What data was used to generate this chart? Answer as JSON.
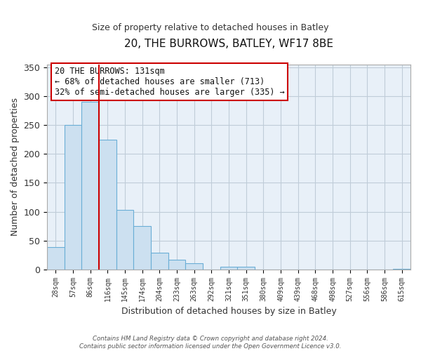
{
  "title": "20, THE BURROWS, BATLEY, WF17 8BE",
  "subtitle": "Size of property relative to detached houses in Batley",
  "xlabel": "Distribution of detached houses by size in Batley",
  "ylabel": "Number of detached properties",
  "categories": [
    "28sqm",
    "57sqm",
    "86sqm",
    "116sqm",
    "145sqm",
    "174sqm",
    "204sqm",
    "233sqm",
    "263sqm",
    "292sqm",
    "321sqm",
    "351sqm",
    "380sqm",
    "409sqm",
    "439sqm",
    "468sqm",
    "498sqm",
    "527sqm",
    "556sqm",
    "586sqm",
    "615sqm"
  ],
  "values": [
    39,
    250,
    291,
    225,
    103,
    75,
    29,
    17,
    10,
    0,
    5,
    4,
    0,
    0,
    0,
    0,
    0,
    0,
    0,
    0,
    1
  ],
  "bar_color": "#cce0f0",
  "bar_edge_color": "#6aaed6",
  "vline_color": "#cc0000",
  "vline_index": 2.575,
  "ylim": [
    0,
    355
  ],
  "yticks": [
    0,
    50,
    100,
    150,
    200,
    250,
    300,
    350
  ],
  "annotation_title": "20 THE BURROWS: 131sqm",
  "annotation_line1": "← 68% of detached houses are smaller (713)",
  "annotation_line2": "32% of semi-detached houses are larger (335) →",
  "annotation_box_edge": "#cc0000",
  "footer_line1": "Contains HM Land Registry data © Crown copyright and database right 2024.",
  "footer_line2": "Contains public sector information licensed under the Open Government Licence v3.0.",
  "bg_color": "#ffffff",
  "plot_bg_color": "#e8f0f8",
  "grid_color": "#c0ccd8"
}
